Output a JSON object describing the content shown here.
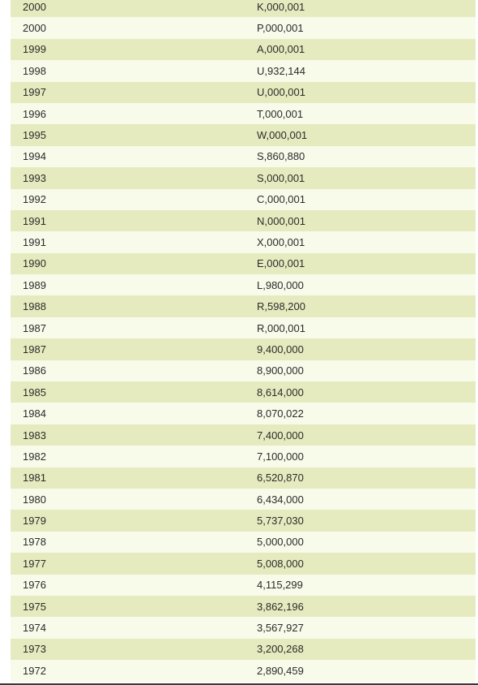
{
  "rows": [
    {
      "year": "2000",
      "amount": "K,000,001"
    },
    {
      "year": "2000",
      "amount": "P,000,001"
    },
    {
      "year": "1999",
      "amount": "A,000,001"
    },
    {
      "year": "1998",
      "amount": "U,932,144"
    },
    {
      "year": "1997",
      "amount": "U,000,001"
    },
    {
      "year": "1996",
      "amount": "T,000,001"
    },
    {
      "year": "1995",
      "amount": "W,000,001"
    },
    {
      "year": "1994",
      "amount": "S,860,880"
    },
    {
      "year": "1993",
      "amount": "S,000,001"
    },
    {
      "year": "1992",
      "amount": "C,000,001"
    },
    {
      "year": "1991",
      "amount": "N,000,001"
    },
    {
      "year": "1991",
      "amount": "X,000,001"
    },
    {
      "year": "1990",
      "amount": "E,000,001"
    },
    {
      "year": "1989",
      "amount": "L,980,000"
    },
    {
      "year": "1988",
      "amount": "R,598,200"
    },
    {
      "year": "1987",
      "amount": "R,000,001"
    },
    {
      "year": "1987",
      "amount": "9,400,000"
    },
    {
      "year": "1986",
      "amount": "8,900,000"
    },
    {
      "year": "1985",
      "amount": "8,614,000"
    },
    {
      "year": "1984",
      "amount": "8,070,022"
    },
    {
      "year": "1983",
      "amount": "7,400,000"
    },
    {
      "year": "1982",
      "amount": "7,100,000"
    },
    {
      "year": "1981",
      "amount": "6,520,870"
    },
    {
      "year": "1980",
      "amount": "6,434,000"
    },
    {
      "year": "1979",
      "amount": "5,737,030"
    },
    {
      "year": "1978",
      "amount": "5,000,000"
    },
    {
      "year": "1977",
      "amount": "5,008,000"
    },
    {
      "year": "1976",
      "amount": "4,115,299"
    },
    {
      "year": "1975",
      "amount": "3,862,196"
    },
    {
      "year": "1974",
      "amount": "3,567,927"
    },
    {
      "year": "1973",
      "amount": "3,200,268"
    },
    {
      "year": "1972",
      "amount": "2,890,459"
    }
  ]
}
